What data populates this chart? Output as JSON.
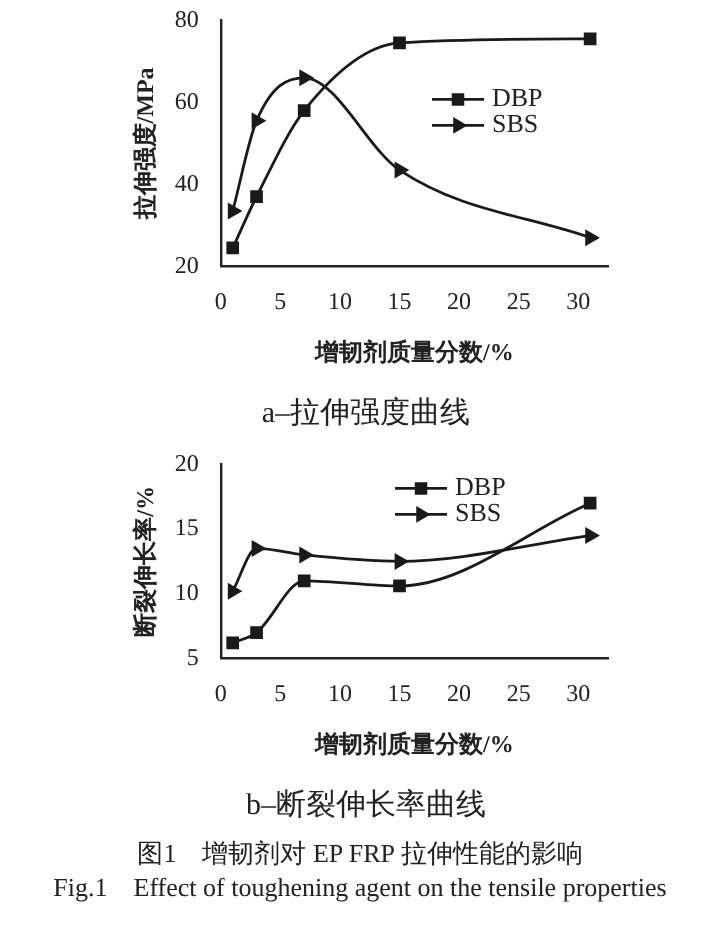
{
  "chart_data": [
    {
      "type": "line",
      "title": "a–拉伸强度曲线",
      "xlabel": "增韧剂质量分数/%",
      "ylabel": "拉伸强度/MPa",
      "x": [
        1,
        3,
        7,
        15,
        31
      ],
      "xlim": [
        0,
        32.5
      ],
      "xticks": [
        0,
        5,
        10,
        15,
        20,
        25,
        30
      ],
      "ylim": [
        20,
        80
      ],
      "yticks": [
        20,
        40,
        60,
        80
      ],
      "grid": false,
      "legend": "right",
      "line_style": "solid",
      "series": [
        {
          "name": "DBP",
          "color": "#1a1a1a",
          "marker": "square",
          "values": [
            24.5,
            37,
            58,
            74.5,
            75.5
          ]
        },
        {
          "name": "SBS",
          "color": "#1a1a1a",
          "marker": "triangle",
          "values": [
            33.5,
            55.5,
            66,
            43.5,
            27
          ]
        }
      ]
    },
    {
      "type": "line",
      "title": "b–断裂伸长率曲线",
      "xlabel": "增韧剂质量分数/%",
      "ylabel": "断裂伸长率/%",
      "x": [
        1,
        3,
        7,
        15,
        31
      ],
      "xlim": [
        0,
        32.5
      ],
      "xticks": [
        0,
        5,
        10,
        15,
        20,
        25,
        30
      ],
      "ylim": [
        5,
        20
      ],
      "yticks": [
        5,
        10,
        15,
        20
      ],
      "grid": false,
      "legend": "top",
      "line_style": "solid",
      "series": [
        {
          "name": "DBP",
          "color": "#1a1a1a",
          "marker": "square",
          "values": [
            6.2,
            7,
            11,
            10.6,
            17
          ]
        },
        {
          "name": "SBS",
          "color": "#1a1a1a",
          "marker": "triangle",
          "values": [
            10.2,
            13.5,
            13,
            12.5,
            14.5
          ]
        }
      ],
      "annotations": [
        "图1　增韧剂对 EP FRP 拉伸性能的影响",
        "Fig.1　Effect of toughening agent on the tensile properties"
      ]
    }
  ]
}
